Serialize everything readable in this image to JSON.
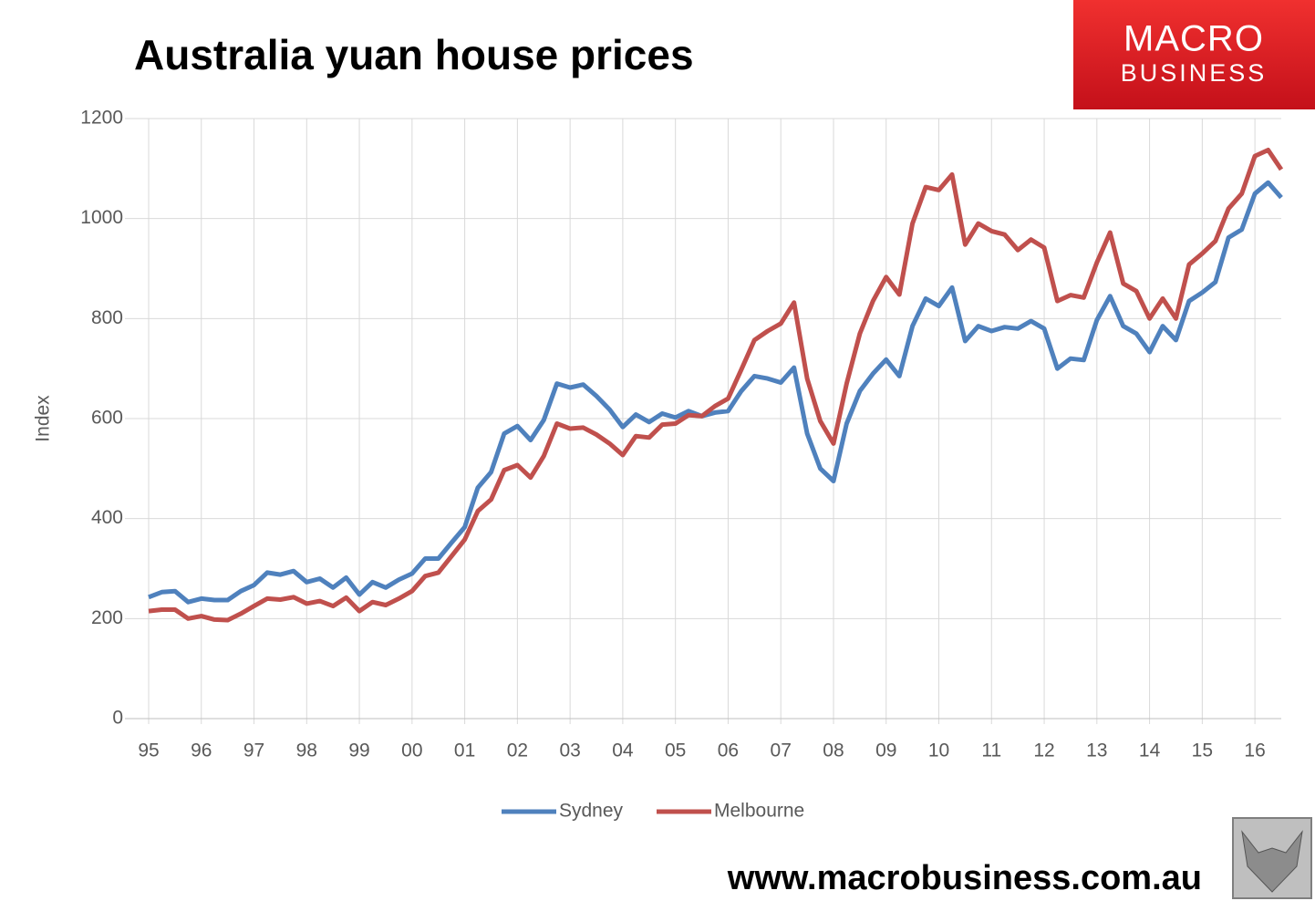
{
  "chart_data": {
    "type": "line",
    "title": "Australia yuan house prices",
    "y_label": "Index",
    "logo": {
      "line1": "MACRO",
      "line2": "BUSINESS"
    },
    "footer": "www.macrobusiness.com.au",
    "categories": [
      "95",
      null,
      null,
      null,
      "96",
      null,
      null,
      null,
      "97",
      null,
      null,
      null,
      "98",
      null,
      null,
      null,
      "99",
      null,
      null,
      null,
      "00",
      null,
      null,
      null,
      "01",
      null,
      null,
      null,
      "02",
      null,
      null,
      null,
      "03",
      null,
      null,
      null,
      "04",
      null,
      null,
      null,
      "05",
      null,
      null,
      null,
      "06",
      null,
      null,
      null,
      "07",
      null,
      null,
      null,
      "08",
      null,
      null,
      null,
      "09",
      null,
      null,
      null,
      "10",
      null,
      null,
      null,
      "11",
      null,
      null,
      null,
      "12",
      null,
      null,
      null,
      "13",
      null,
      null,
      null,
      "14",
      null,
      null,
      null,
      "15",
      null,
      null,
      null,
      "16",
      null,
      null
    ],
    "series": [
      {
        "name": "Sydney",
        "color": "#4f81bd",
        "values": [
          243,
          253,
          255,
          233,
          240,
          237,
          237,
          255,
          267,
          292,
          288,
          295,
          273,
          280,
          262,
          282,
          248,
          273,
          262,
          278,
          290,
          320,
          320,
          352,
          383,
          462,
          493,
          570,
          585,
          557,
          597,
          670,
          662,
          668,
          645,
          618,
          583,
          608,
          593,
          610,
          602,
          615,
          605,
          612,
          615,
          655,
          685,
          680,
          672,
          702,
          570,
          500,
          475,
          590,
          655,
          690,
          718,
          685,
          785,
          840,
          825,
          862,
          755,
          785,
          775,
          783,
          780,
          795,
          780,
          700,
          720,
          717,
          797,
          845,
          785,
          770,
          733,
          785,
          757,
          835,
          852,
          873,
          962,
          978,
          1050,
          1072,
          1042
        ]
      },
      {
        "name": "Melbourne",
        "color": "#c0504d",
        "values": [
          215,
          218,
          218,
          200,
          205,
          198,
          197,
          210,
          225,
          240,
          238,
          243,
          230,
          235,
          225,
          242,
          215,
          233,
          227,
          240,
          255,
          285,
          292,
          325,
          358,
          415,
          438,
          497,
          507,
          482,
          525,
          590,
          580,
          582,
          568,
          550,
          527,
          565,
          562,
          588,
          590,
          607,
          605,
          625,
          640,
          698,
          757,
          775,
          790,
          832,
          680,
          595,
          550,
          670,
          770,
          835,
          883,
          848,
          990,
          1063,
          1057,
          1088,
          948,
          990,
          975,
          968,
          937,
          958,
          942,
          835,
          847,
          842,
          912,
          972,
          870,
          855,
          800,
          840,
          800,
          908,
          930,
          955,
          1020,
          1050,
          1125,
          1137,
          1098
        ]
      }
    ],
    "ylim": [
      0,
      1200
    ],
    "yticks": [
      0,
      200,
      400,
      600,
      800,
      1000,
      1200
    ],
    "grid": true
  }
}
